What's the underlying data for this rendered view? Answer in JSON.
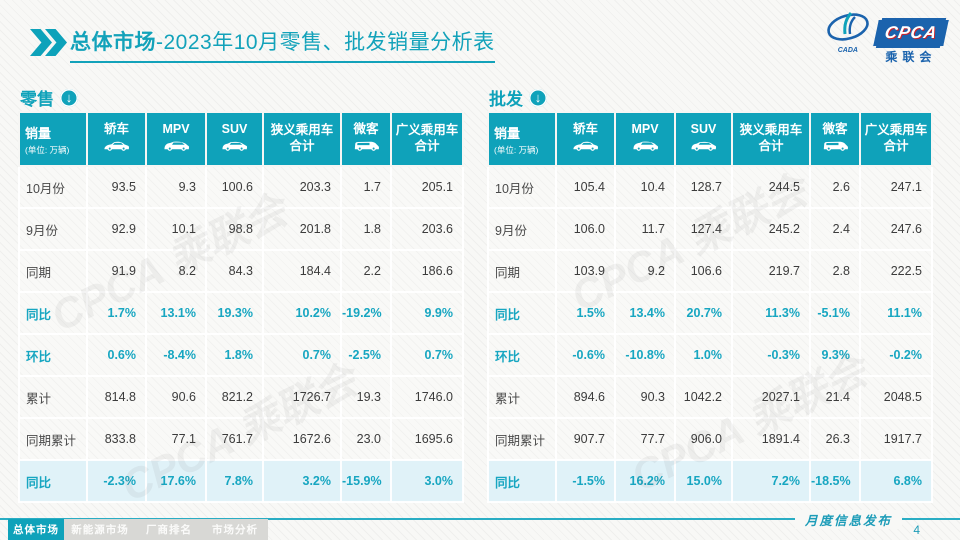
{
  "slide": {
    "title_primary": "总体市场",
    "title_secondary": "-2023年10月零售、批发销量分析表",
    "watermark": "CPCA 乘联会",
    "logo": {
      "cpca": "CPCA",
      "cada": "CADA",
      "name_cn": "乘联会"
    }
  },
  "tables": [
    {
      "section_label": "零售",
      "corner": {
        "title": "销量",
        "subtitle": "(单位: 万辆)"
      },
      "columns": [
        {
          "label": "轿车",
          "icon": "sedan-icon"
        },
        {
          "label": "MPV",
          "icon": "mpv-icon"
        },
        {
          "label": "SUV",
          "icon": "suv-icon"
        },
        {
          "label": "狭义乘用车",
          "label2": "合计"
        },
        {
          "label": "微客",
          "icon": "microvan-icon"
        },
        {
          "label": "广义乘用车",
          "label2": "合计"
        }
      ],
      "rows": [
        {
          "label": "10月份",
          "type": "normal",
          "values": [
            "93.5",
            "9.3",
            "100.6",
            "203.3",
            "1.7",
            "205.1"
          ]
        },
        {
          "label": "9月份",
          "type": "normal",
          "values": [
            "92.9",
            "10.1",
            "98.8",
            "201.8",
            "1.8",
            "203.6"
          ]
        },
        {
          "label": "同期",
          "type": "normal",
          "values": [
            "91.9",
            "8.2",
            "84.3",
            "184.4",
            "2.2",
            "186.6"
          ]
        },
        {
          "label": "同比",
          "type": "pct",
          "values": [
            "1.7%",
            "13.1%",
            "19.3%",
            "10.2%",
            "-19.2%",
            "9.9%"
          ]
        },
        {
          "label": "环比",
          "type": "pct",
          "values": [
            "0.6%",
            "-8.4%",
            "1.8%",
            "0.7%",
            "-2.5%",
            "0.7%"
          ]
        },
        {
          "label": "累计",
          "type": "normal",
          "values": [
            "814.8",
            "90.6",
            "821.2",
            "1726.7",
            "19.3",
            "1746.0"
          ]
        },
        {
          "label": "同期累计",
          "type": "normal",
          "values": [
            "833.8",
            "77.1",
            "761.7",
            "1672.6",
            "23.0",
            "1695.6"
          ]
        },
        {
          "label": "同比",
          "type": "pcth",
          "values": [
            "-2.3%",
            "17.6%",
            "7.8%",
            "3.2%",
            "-15.9%",
            "3.0%"
          ]
        }
      ]
    },
    {
      "section_label": "批发",
      "corner": {
        "title": "销量",
        "subtitle": "(单位: 万辆)"
      },
      "columns": [
        {
          "label": "轿车",
          "icon": "sedan-icon"
        },
        {
          "label": "MPV",
          "icon": "mpv-icon"
        },
        {
          "label": "SUV",
          "icon": "suv-icon"
        },
        {
          "label": "狭义乘用车",
          "label2": "合计"
        },
        {
          "label": "微客",
          "icon": "microvan-icon"
        },
        {
          "label": "广义乘用车",
          "label2": "合计"
        }
      ],
      "rows": [
        {
          "label": "10月份",
          "type": "normal",
          "values": [
            "105.4",
            "10.4",
            "128.7",
            "244.5",
            "2.6",
            "247.1"
          ]
        },
        {
          "label": "9月份",
          "type": "normal",
          "values": [
            "106.0",
            "11.7",
            "127.4",
            "245.2",
            "2.4",
            "247.6"
          ]
        },
        {
          "label": "同期",
          "type": "normal",
          "values": [
            "103.9",
            "9.2",
            "106.6",
            "219.7",
            "2.8",
            "222.5"
          ]
        },
        {
          "label": "同比",
          "type": "pct",
          "values": [
            "1.5%",
            "13.4%",
            "20.7%",
            "11.3%",
            "-5.1%",
            "11.1%"
          ]
        },
        {
          "label": "环比",
          "type": "pct",
          "values": [
            "-0.6%",
            "-10.8%",
            "1.0%",
            "-0.3%",
            "9.3%",
            "-0.2%"
          ]
        },
        {
          "label": "累计",
          "type": "normal",
          "values": [
            "894.6",
            "90.3",
            "1042.2",
            "2027.1",
            "21.4",
            "2048.5"
          ]
        },
        {
          "label": "同期累计",
          "type": "normal",
          "values": [
            "907.7",
            "77.7",
            "906.0",
            "1891.4",
            "26.3",
            "1917.7"
          ]
        },
        {
          "label": "同比",
          "type": "pcth",
          "values": [
            "-1.5%",
            "16.2%",
            "15.0%",
            "7.2%",
            "-18.5%",
            "6.8%"
          ]
        }
      ]
    }
  ],
  "footer": {
    "tabs": [
      {
        "label": "总体市场",
        "active": true
      },
      {
        "label": "新能源市场",
        "active": false
      },
      {
        "label": "厂商排名",
        "active": false
      },
      {
        "label": "市场分析",
        "active": false
      }
    ],
    "release_label": "月度信息发布",
    "page_number": "4"
  }
}
